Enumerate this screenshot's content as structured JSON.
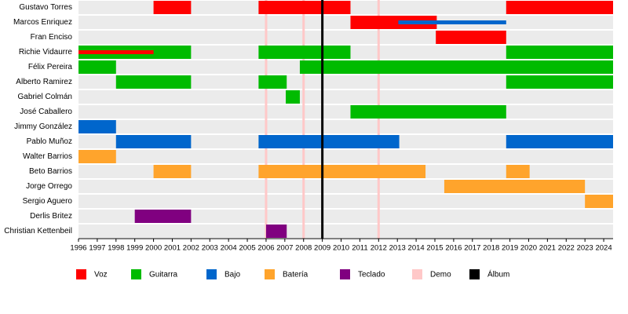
{
  "chart_data": {
    "type": "timeline",
    "categories": [
      "Gustavo Torres",
      "Marcos Enriquez",
      "Fran Enciso",
      "Richie Vidaurre",
      "Félix Pereira",
      "Alberto Ramirez",
      "Gabriel Colmán",
      "José Caballero",
      "Jimmy González",
      "Pablo Muñoz",
      "Walter Barrios",
      "Beto Barrios",
      "Jorge Orrego",
      "Sergio Aguero",
      "Derlis Britez",
      "Christian Kettenbeil"
    ],
    "xlim": [
      1996,
      2024.5
    ],
    "xticks": [
      1996,
      1997,
      1998,
      1999,
      2000,
      2001,
      2002,
      2003,
      2004,
      2005,
      2006,
      2007,
      2008,
      2009,
      2010,
      2011,
      2012,
      2013,
      2014,
      2015,
      2016,
      2017,
      2018,
      2019,
      2020,
      2021,
      2022,
      2023,
      2024
    ],
    "series": [
      {
        "name": "Voz",
        "color": "#ff0000",
        "bars": [
          {
            "row": 0,
            "start": 2000,
            "end": 2002
          },
          {
            "row": 0,
            "start": 2005.6,
            "end": 2010.5
          },
          {
            "row": 0,
            "start": 2018.8,
            "end": 2024.5
          },
          {
            "row": 1,
            "start": 2010.5,
            "end": 2015.1
          },
          {
            "row": 2,
            "start": 2015.05,
            "end": 2018.8
          },
          {
            "row": 3,
            "start": 1996,
            "end": 2000,
            "thin": true
          }
        ]
      },
      {
        "name": "Guitarra",
        "color": "#00bb00",
        "bars": [
          {
            "row": 3,
            "start": 1996,
            "end": 2002
          },
          {
            "row": 3,
            "start": 2005.6,
            "end": 2010.5
          },
          {
            "row": 3,
            "start": 2018.8,
            "end": 2024.5
          },
          {
            "row": 4,
            "start": 1996,
            "end": 1998
          },
          {
            "row": 4,
            "start": 2007.8,
            "end": 2024.5
          },
          {
            "row": 5,
            "start": 1998,
            "end": 2002
          },
          {
            "row": 5,
            "start": 2005.6,
            "end": 2007.1
          },
          {
            "row": 5,
            "start": 2018.8,
            "end": 2024.5
          },
          {
            "row": 6,
            "start": 2007.05,
            "end": 2007.8
          },
          {
            "row": 7,
            "start": 2010.5,
            "end": 2018.8
          }
        ]
      },
      {
        "name": "Bajo",
        "color": "#0066cc",
        "bars": [
          {
            "row": 1,
            "start": 2013.05,
            "end": 2018.8,
            "thin": true
          },
          {
            "row": 8,
            "start": 1996,
            "end": 1998
          },
          {
            "row": 9,
            "start": 1998,
            "end": 2002
          },
          {
            "row": 9,
            "start": 2005.6,
            "end": 2013.1
          },
          {
            "row": 9,
            "start": 2018.8,
            "end": 2024.5
          }
        ]
      },
      {
        "name": "Batería",
        "color": "#ffa42c",
        "bars": [
          {
            "row": 10,
            "start": 1996,
            "end": 1998
          },
          {
            "row": 11,
            "start": 2000,
            "end": 2002
          },
          {
            "row": 11,
            "start": 2005.6,
            "end": 2014.5
          },
          {
            "row": 11,
            "start": 2018.8,
            "end": 2020.05
          },
          {
            "row": 12,
            "start": 2015.5,
            "end": 2023
          },
          {
            "row": 13,
            "start": 2023,
            "end": 2024.5
          }
        ]
      },
      {
        "name": "Teclado",
        "color": "#800080",
        "bars": [
          {
            "row": 14,
            "start": 1999,
            "end": 2002
          },
          {
            "row": 15,
            "start": 2006,
            "end": 2007.1
          }
        ]
      },
      {
        "name": "Demo",
        "color": "#ffc8c8",
        "events": [
          2006,
          2008,
          2012
        ]
      },
      {
        "name": "Álbum",
        "color": "#000000",
        "events": [
          2009
        ]
      }
    ]
  }
}
